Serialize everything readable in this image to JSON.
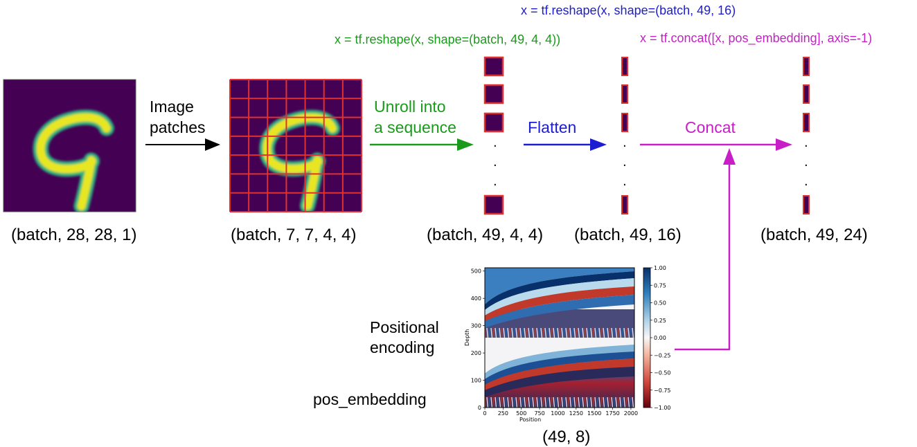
{
  "code": {
    "reshape_4x4": "x = tf.reshape(x, shape=(batch, 49, 4, 4))",
    "reshape_flat": "x = tf.reshape(x, shape=(batch, 49, 16)",
    "concat": "x = tf.concat([x, pos_embedding], axis=-1)"
  },
  "steps": {
    "image_patches": [
      "Image",
      "patches"
    ],
    "unroll": [
      "Unroll into",
      "a sequence"
    ],
    "flatten": "Flatten",
    "concat": "Concat"
  },
  "shapes": {
    "input": "(batch, 28, 28, 1)",
    "patches": "(batch, 7, 7, 4, 4)",
    "sequence": "(batch, 49, 4, 4)",
    "flattened": "(batch, 49, 16)",
    "concatenated": "(batch, 49, 24)",
    "pos_embedding": "(49, 8)"
  },
  "positional": {
    "title": [
      "Positional",
      "encoding"
    ],
    "var_name": "pos_embedding"
  },
  "heatmap": {
    "ylabel": "Depth",
    "xlabel": "Position",
    "x_ticks": [
      "0",
      "250",
      "500",
      "750",
      "1000",
      "1250",
      "1500",
      "1750",
      "2000"
    ],
    "y_ticks": [
      "0",
      "100",
      "200",
      "300",
      "400",
      "500"
    ],
    "colorbar_ticks": [
      "1.00",
      "0.75",
      "0.50",
      "0.25",
      "0.00",
      "−0.25",
      "−0.50",
      "−0.75",
      "−1.00"
    ]
  },
  "sequence_ellipsis": ".",
  "colors": {
    "green": "#1a9a1a",
    "blue": "#1c1cd0",
    "magenta": "#c81ec8",
    "patch_grid": "#e03030",
    "viridis_dark": "#440154",
    "viridis_yellow": "#e4e419"
  }
}
